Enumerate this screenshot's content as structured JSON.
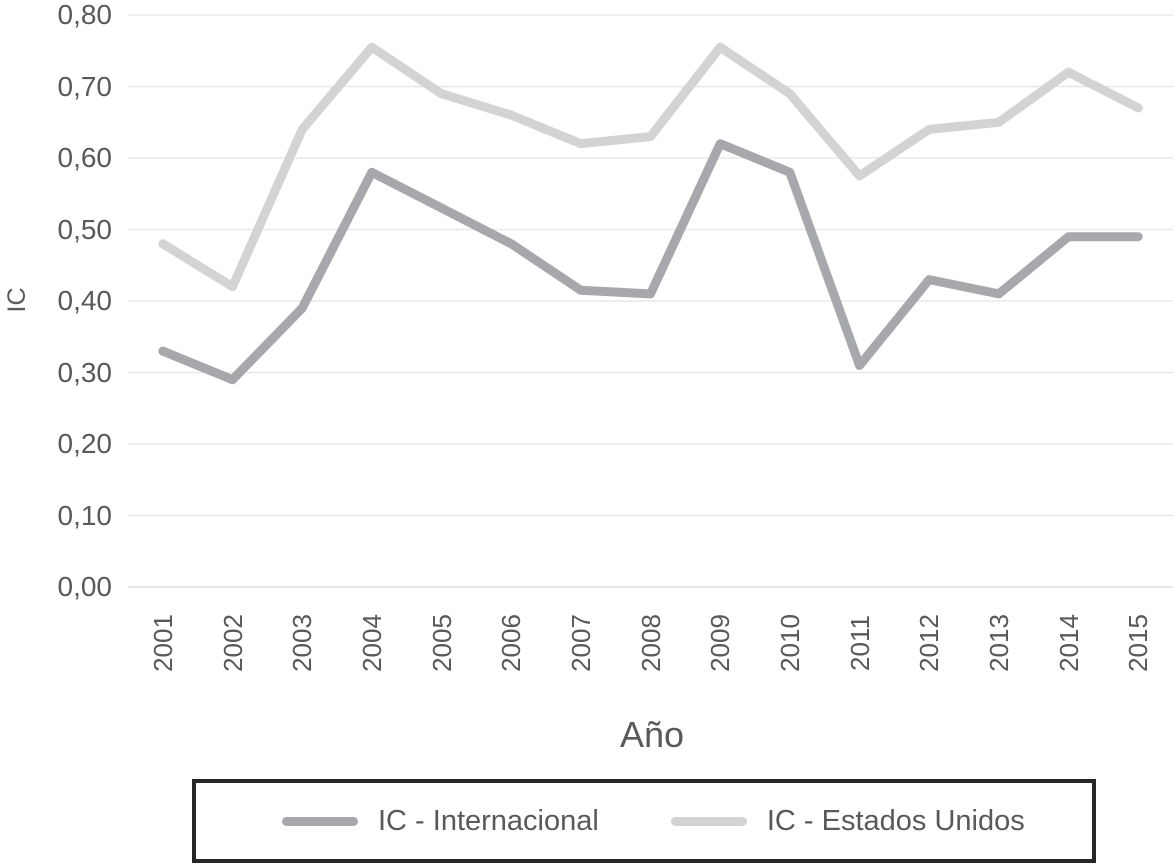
{
  "chart_data": {
    "type": "line",
    "title": "",
    "xlabel": "Año",
    "ylabel": "IC",
    "x": [
      "2001",
      "2002",
      "2003",
      "2004",
      "2005",
      "2006",
      "2007",
      "2008",
      "2009",
      "2010",
      "2011",
      "2012",
      "2013",
      "2014",
      "2015"
    ],
    "series": [
      {
        "name": "IC - Internacional",
        "color": "#a6a8ab",
        "values": [
          0.33,
          0.29,
          0.39,
          0.58,
          0.53,
          0.48,
          0.415,
          0.41,
          0.62,
          0.58,
          0.31,
          0.43,
          0.41,
          0.49,
          0.49
        ]
      },
      {
        "name": "IC - Estados Unidos",
        "color": "#d2d3d5",
        "values": [
          0.48,
          0.42,
          0.64,
          0.755,
          0.69,
          0.66,
          0.62,
          0.63,
          0.755,
          0.69,
          0.575,
          0.64,
          0.65,
          0.72,
          0.67
        ]
      }
    ],
    "ylim": [
      0.0,
      0.8
    ],
    "ytick_step": 0.1,
    "ytick_labels": [
      "0,00",
      "0,10",
      "0,20",
      "0,30",
      "0,40",
      "0,50",
      "0,60",
      "0,70",
      "0,80"
    ],
    "grid": "horizontal",
    "legend_position": "bottom-boxed"
  },
  "colors": {
    "background": "#ffffff",
    "text": "#58595b",
    "gridline": "#e7e8e9",
    "baseline": "#dcdddf",
    "legend_border": "#262626"
  }
}
